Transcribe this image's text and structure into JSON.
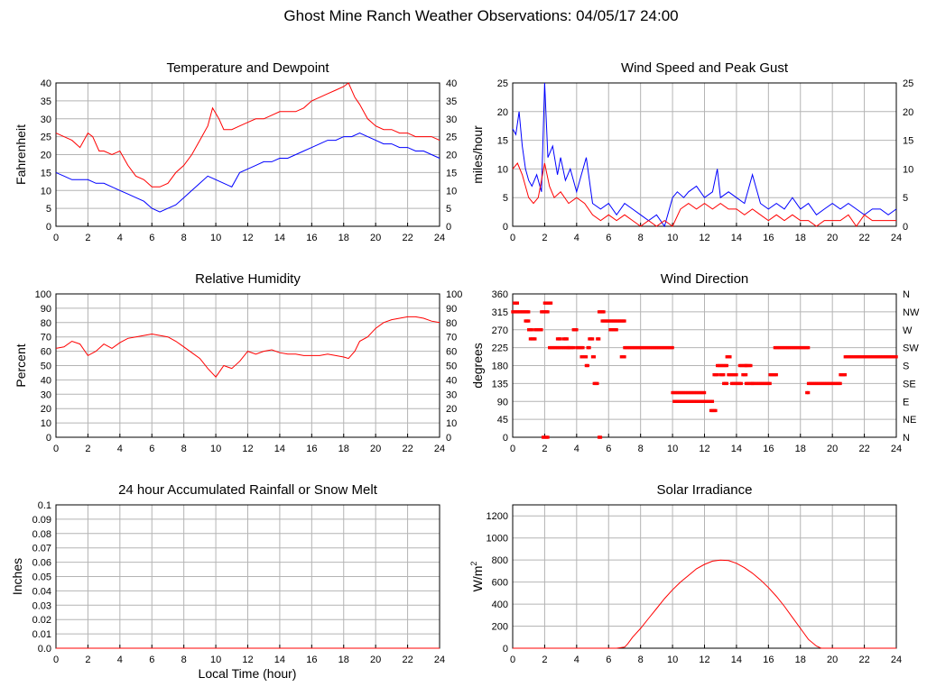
{
  "title": "Ghost Mine Ranch Weather Observations: 04/05/17 24:00",
  "xlabel": "Local Time (hour)",
  "colors": {
    "red": "#ff0000",
    "blue": "#0000ff",
    "grid": "#b4b4b4"
  },
  "chart_data": [
    {
      "id": "temp",
      "type": "line",
      "title": "Temperature and Dewpoint",
      "ylabel": "Fahrenheit",
      "xlim": [
        0,
        24
      ],
      "ylim": [
        0,
        40
      ],
      "xticks": [
        0,
        2,
        4,
        6,
        8,
        10,
        12,
        14,
        16,
        18,
        20,
        22,
        24
      ],
      "yticks": [
        0,
        5,
        10,
        15,
        20,
        25,
        30,
        35,
        40
      ],
      "right_ticks": [
        "0",
        "5",
        "10",
        "15",
        "20",
        "25",
        "30",
        "35",
        "40"
      ],
      "grid": true,
      "series": [
        {
          "color": "red",
          "x": [
            0,
            0.5,
            1,
            1.5,
            2,
            2.3,
            2.7,
            3,
            3.5,
            4,
            4.5,
            5,
            5.5,
            6,
            6.5,
            7,
            7.5,
            8,
            8.5,
            9,
            9.5,
            9.8,
            10.2,
            10.5,
            11,
            11.5,
            12,
            12.5,
            13,
            13.5,
            14,
            14.5,
            15,
            15.5,
            16,
            16.5,
            17,
            17.5,
            18,
            18.3,
            18.7,
            19,
            19.5,
            20,
            20.5,
            21,
            21.5,
            22,
            22.5,
            23,
            23.5,
            24
          ],
          "y": [
            26,
            25,
            24,
            22,
            26,
            25,
            21,
            21,
            20,
            21,
            17,
            14,
            13,
            11,
            11,
            12,
            15,
            17,
            20,
            24,
            28,
            33,
            30,
            27,
            27,
            28,
            29,
            30,
            30,
            31,
            32,
            32,
            32,
            33,
            35,
            36,
            37,
            38,
            39,
            40,
            36,
            34,
            30,
            28,
            27,
            27,
            26,
            26,
            25,
            25,
            25,
            24
          ]
        },
        {
          "color": "blue",
          "x": [
            0,
            0.5,
            1,
            1.5,
            2,
            2.5,
            3,
            3.5,
            4,
            4.5,
            5,
            5.5,
            6,
            6.5,
            7,
            7.5,
            8,
            8.5,
            9,
            9.5,
            10,
            10.5,
            11,
            11.5,
            12,
            12.5,
            13,
            13.5,
            14,
            14.5,
            15,
            15.5,
            16,
            16.5,
            17,
            17.5,
            18,
            18.5,
            19,
            19.5,
            20,
            20.5,
            21,
            21.5,
            22,
            22.5,
            23,
            23.5,
            24
          ],
          "y": [
            15,
            14,
            13,
            13,
            13,
            12,
            12,
            11,
            10,
            9,
            8,
            7,
            5,
            4,
            5,
            6,
            8,
            10,
            12,
            14,
            13,
            12,
            11,
            15,
            16,
            17,
            18,
            18,
            19,
            19,
            20,
            21,
            22,
            23,
            24,
            24,
            25,
            25,
            26,
            25,
            24,
            23,
            23,
            22,
            22,
            21,
            21,
            20,
            19
          ]
        }
      ]
    },
    {
      "id": "wind",
      "type": "line",
      "title": "Wind Speed and Peak Gust",
      "ylabel": "miles/hour",
      "xlim": [
        0,
        24
      ],
      "ylim": [
        0,
        25
      ],
      "xticks": [
        0,
        2,
        4,
        6,
        8,
        10,
        12,
        14,
        16,
        18,
        20,
        22,
        24
      ],
      "yticks": [
        0,
        5,
        10,
        15,
        20,
        25
      ],
      "right_ticks": [
        "0",
        "5",
        "10",
        "15",
        "20",
        "25"
      ],
      "grid": true,
      "series": [
        {
          "color": "blue",
          "x": [
            0,
            0.2,
            0.4,
            0.6,
            0.8,
            1,
            1.2,
            1.5,
            1.8,
            2,
            2.2,
            2.5,
            2.8,
            3,
            3.3,
            3.6,
            4,
            4.3,
            4.6,
            4.8,
            5,
            5.5,
            6,
            6.5,
            7,
            7.5,
            8,
            8.5,
            9,
            9.5,
            10,
            10.3,
            10.7,
            11,
            11.5,
            12,
            12.5,
            12.8,
            13,
            13.5,
            14,
            14.5,
            15,
            15.5,
            16,
            16.5,
            17,
            17.5,
            18,
            18.5,
            19,
            19.5,
            20,
            20.5,
            21,
            21.5,
            22,
            22.5,
            23,
            23.5,
            24
          ],
          "y": [
            17,
            16,
            20,
            14,
            10,
            8,
            7,
            9,
            6,
            25,
            12,
            14,
            9,
            12,
            8,
            10,
            6,
            9,
            12,
            8,
            4,
            3,
            4,
            2,
            4,
            3,
            2,
            1,
            2,
            0,
            5,
            6,
            5,
            6,
            7,
            5,
            6,
            10,
            5,
            6,
            5,
            4,
            9,
            4,
            3,
            4,
            3,
            5,
            3,
            4,
            2,
            3,
            4,
            3,
            4,
            3,
            2,
            3,
            3,
            2,
            3
          ]
        },
        {
          "color": "red",
          "x": [
            0,
            0.3,
            0.6,
            1,
            1.3,
            1.6,
            2,
            2.3,
            2.6,
            3,
            3.5,
            4,
            4.5,
            5,
            5.5,
            6,
            6.5,
            7,
            7.5,
            8,
            8.5,
            9,
            9.5,
            10,
            10.5,
            11,
            11.5,
            12,
            12.5,
            13,
            13.5,
            14,
            14.5,
            15,
            15.5,
            16,
            16.5,
            17,
            17.5,
            18,
            18.5,
            19,
            19.5,
            20,
            20.5,
            21,
            21.5,
            22,
            22.5,
            23,
            23.5,
            24
          ],
          "y": [
            10,
            11,
            9,
            5,
            4,
            5,
            11,
            7,
            5,
            6,
            4,
            5,
            4,
            2,
            1,
            2,
            1,
            2,
            1,
            0,
            1,
            0,
            1,
            0,
            3,
            4,
            3,
            4,
            3,
            4,
            3,
            3,
            2,
            3,
            2,
            1,
            2,
            1,
            2,
            1,
            1,
            0,
            1,
            1,
            1,
            2,
            0,
            2,
            1,
            1,
            1,
            1
          ]
        }
      ]
    },
    {
      "id": "rh",
      "type": "line",
      "title": "Relative Humidity",
      "ylabel": "Percent",
      "xlim": [
        0,
        24
      ],
      "ylim": [
        0,
        100
      ],
      "xticks": [
        0,
        2,
        4,
        6,
        8,
        10,
        12,
        14,
        16,
        18,
        20,
        22,
        24
      ],
      "yticks": [
        0,
        10,
        20,
        30,
        40,
        50,
        60,
        70,
        80,
        90,
        100
      ],
      "right_ticks": [
        "0",
        "10",
        "20",
        "30",
        "40",
        "50",
        "60",
        "70",
        "80",
        "90",
        "100"
      ],
      "grid": true,
      "series": [
        {
          "color": "red",
          "x": [
            0,
            0.5,
            1,
            1.5,
            2,
            2.5,
            3,
            3.5,
            4,
            4.5,
            5,
            5.5,
            6,
            6.5,
            7,
            7.5,
            8,
            8.5,
            9,
            9.5,
            10,
            10.5,
            11,
            11.5,
            12,
            12.5,
            13,
            13.5,
            14,
            14.5,
            15,
            15.5,
            16,
            16.5,
            17,
            17.5,
            18,
            18.3,
            18.7,
            19,
            19.5,
            20,
            20.5,
            21,
            21.5,
            22,
            22.5,
            23,
            23.5,
            24
          ],
          "y": [
            62,
            63,
            67,
            65,
            57,
            60,
            65,
            62,
            66,
            69,
            70,
            71,
            72,
            71,
            70,
            67,
            63,
            59,
            55,
            48,
            42,
            50,
            48,
            53,
            60,
            58,
            60,
            61,
            59,
            58,
            58,
            57,
            57,
            57,
            58,
            57,
            56,
            55,
            60,
            67,
            70,
            76,
            80,
            82,
            83,
            84,
            84,
            83,
            81,
            80
          ]
        }
      ]
    },
    {
      "id": "dir",
      "type": "scatter",
      "title": "Wind Direction",
      "ylabel": "degrees",
      "xlim": [
        0,
        24
      ],
      "ylim": [
        0,
        360
      ],
      "xticks": [
        0,
        2,
        4,
        6,
        8,
        10,
        12,
        14,
        16,
        18,
        20,
        22,
        24
      ],
      "yticks": [
        0,
        45,
        90,
        135,
        180,
        225,
        270,
        315,
        360
      ],
      "right_ticks": [
        "N",
        "NE",
        "E",
        "SE",
        "S",
        "SW",
        "W",
        "NW",
        "N"
      ],
      "grid": true,
      "segments": [
        {
          "x0": 0.0,
          "x1": 1.0,
          "y": 315
        },
        {
          "x0": 0.1,
          "x1": 0.35,
          "y": 337
        },
        {
          "x0": 0.8,
          "x1": 1.0,
          "y": 292
        },
        {
          "x0": 1.0,
          "x1": 1.2,
          "y": 270
        },
        {
          "x0": 1.1,
          "x1": 1.4,
          "y": 247
        },
        {
          "x0": 1.4,
          "x1": 1.8,
          "y": 270
        },
        {
          "x0": 1.8,
          "x1": 2.0,
          "y": 315
        },
        {
          "x0": 1.9,
          "x1": 2.2,
          "y": 0
        },
        {
          "x0": 2.0,
          "x1": 2.4,
          "y": 337
        },
        {
          "x0": 2.1,
          "x1": 2.2,
          "y": 315
        },
        {
          "x0": 2.3,
          "x1": 3.5,
          "y": 225
        },
        {
          "x0": 2.8,
          "x1": 3.0,
          "y": 247
        },
        {
          "x0": 3.2,
          "x1": 3.4,
          "y": 247
        },
        {
          "x0": 3.5,
          "x1": 3.8,
          "y": 225
        },
        {
          "x0": 3.8,
          "x1": 4.0,
          "y": 270
        },
        {
          "x0": 4.0,
          "x1": 4.4,
          "y": 225
        },
        {
          "x0": 4.3,
          "x1": 4.6,
          "y": 202
        },
        {
          "x0": 4.6,
          "x1": 4.7,
          "y": 180
        },
        {
          "x0": 4.7,
          "x1": 4.8,
          "y": 225
        },
        {
          "x0": 4.8,
          "x1": 5.0,
          "y": 247
        },
        {
          "x0": 5.0,
          "x1": 5.1,
          "y": 202
        },
        {
          "x0": 5.1,
          "x1": 5.3,
          "y": 135
        },
        {
          "x0": 5.3,
          "x1": 5.4,
          "y": 247
        },
        {
          "x0": 5.4,
          "x1": 5.5,
          "y": 0
        },
        {
          "x0": 5.4,
          "x1": 5.7,
          "y": 315
        },
        {
          "x0": 5.6,
          "x1": 6.1,
          "y": 292
        },
        {
          "x0": 6.1,
          "x1": 6.5,
          "y": 270
        },
        {
          "x0": 6.2,
          "x1": 7.0,
          "y": 292
        },
        {
          "x0": 6.8,
          "x1": 7.0,
          "y": 202
        },
        {
          "x0": 7.0,
          "x1": 10.0,
          "y": 225
        },
        {
          "x0": 10.0,
          "x1": 12.0,
          "y": 112
        },
        {
          "x0": 10.1,
          "x1": 12.5,
          "y": 90
        },
        {
          "x0": 12.4,
          "x1": 12.7,
          "y": 67
        },
        {
          "x0": 12.6,
          "x1": 12.8,
          "y": 157
        },
        {
          "x0": 12.8,
          "x1": 13.4,
          "y": 180
        },
        {
          "x0": 13.0,
          "x1": 13.2,
          "y": 157
        },
        {
          "x0": 13.2,
          "x1": 13.4,
          "y": 135
        },
        {
          "x0": 13.4,
          "x1": 13.6,
          "y": 202
        },
        {
          "x0": 13.5,
          "x1": 14.0,
          "y": 157
        },
        {
          "x0": 13.7,
          "x1": 14.3,
          "y": 135
        },
        {
          "x0": 14.2,
          "x1": 14.6,
          "y": 180
        },
        {
          "x0": 14.4,
          "x1": 14.6,
          "y": 157
        },
        {
          "x0": 14.6,
          "x1": 14.9,
          "y": 180
        },
        {
          "x0": 14.6,
          "x1": 15.0,
          "y": 135
        },
        {
          "x0": 15.0,
          "x1": 16.1,
          "y": 135
        },
        {
          "x0": 16.1,
          "x1": 16.5,
          "y": 157
        },
        {
          "x0": 16.4,
          "x1": 18.5,
          "y": 225
        },
        {
          "x0": 18.4,
          "x1": 18.5,
          "y": 112
        },
        {
          "x0": 18.5,
          "x1": 20.5,
          "y": 135
        },
        {
          "x0": 20.5,
          "x1": 20.8,
          "y": 157
        },
        {
          "x0": 20.8,
          "x1": 24.0,
          "y": 202
        }
      ]
    },
    {
      "id": "rain",
      "type": "line",
      "title": "24 hour Accumulated Rainfall or Snow Melt",
      "ylabel": "Inches",
      "xlim": [
        0,
        24
      ],
      "ylim": [
        0,
        0.1
      ],
      "xticks": [
        0,
        2,
        4,
        6,
        8,
        10,
        12,
        14,
        16,
        18,
        20,
        22,
        24
      ],
      "yticks": [
        0,
        0.01,
        0.02,
        0.03,
        0.04,
        0.05,
        0.06,
        0.07,
        0.08,
        0.09,
        0.1
      ],
      "ytick_labels": [
        "0.0",
        "0.01",
        "0.02",
        "0.03",
        "0.04",
        "0.05",
        "0.06",
        "0.07",
        "0.08",
        "0.09",
        "0.1"
      ],
      "grid": true,
      "series": [
        {
          "color": "red",
          "x": [
            0,
            24
          ],
          "y": [
            0,
            0
          ]
        }
      ]
    },
    {
      "id": "solar",
      "type": "line",
      "title": "Solar Irradiance",
      "ylabel": "W/m",
      "ylabel_sup": "2",
      "xlim": [
        0,
        24
      ],
      "ylim": [
        0,
        1300
      ],
      "xticks": [
        0,
        2,
        4,
        6,
        8,
        10,
        12,
        14,
        16,
        18,
        20,
        22,
        24
      ],
      "yticks": [
        0,
        200,
        400,
        600,
        800,
        1000,
        1200
      ],
      "grid": true,
      "series": [
        {
          "color": "red",
          "x": [
            0,
            6.5,
            7,
            7.2,
            7.5,
            8,
            8.5,
            9,
            9.5,
            10,
            10.5,
            11,
            11.5,
            12,
            12.5,
            13,
            13.5,
            14,
            14.5,
            15,
            15.5,
            16,
            16.5,
            17,
            17.5,
            18,
            18.5,
            19,
            19.3,
            24
          ],
          "y": [
            0,
            0,
            10,
            40,
            100,
            180,
            270,
            360,
            450,
            530,
            600,
            660,
            720,
            760,
            790,
            800,
            795,
            770,
            730,
            680,
            620,
            550,
            470,
            380,
            280,
            180,
            80,
            20,
            0,
            0
          ]
        }
      ]
    }
  ]
}
